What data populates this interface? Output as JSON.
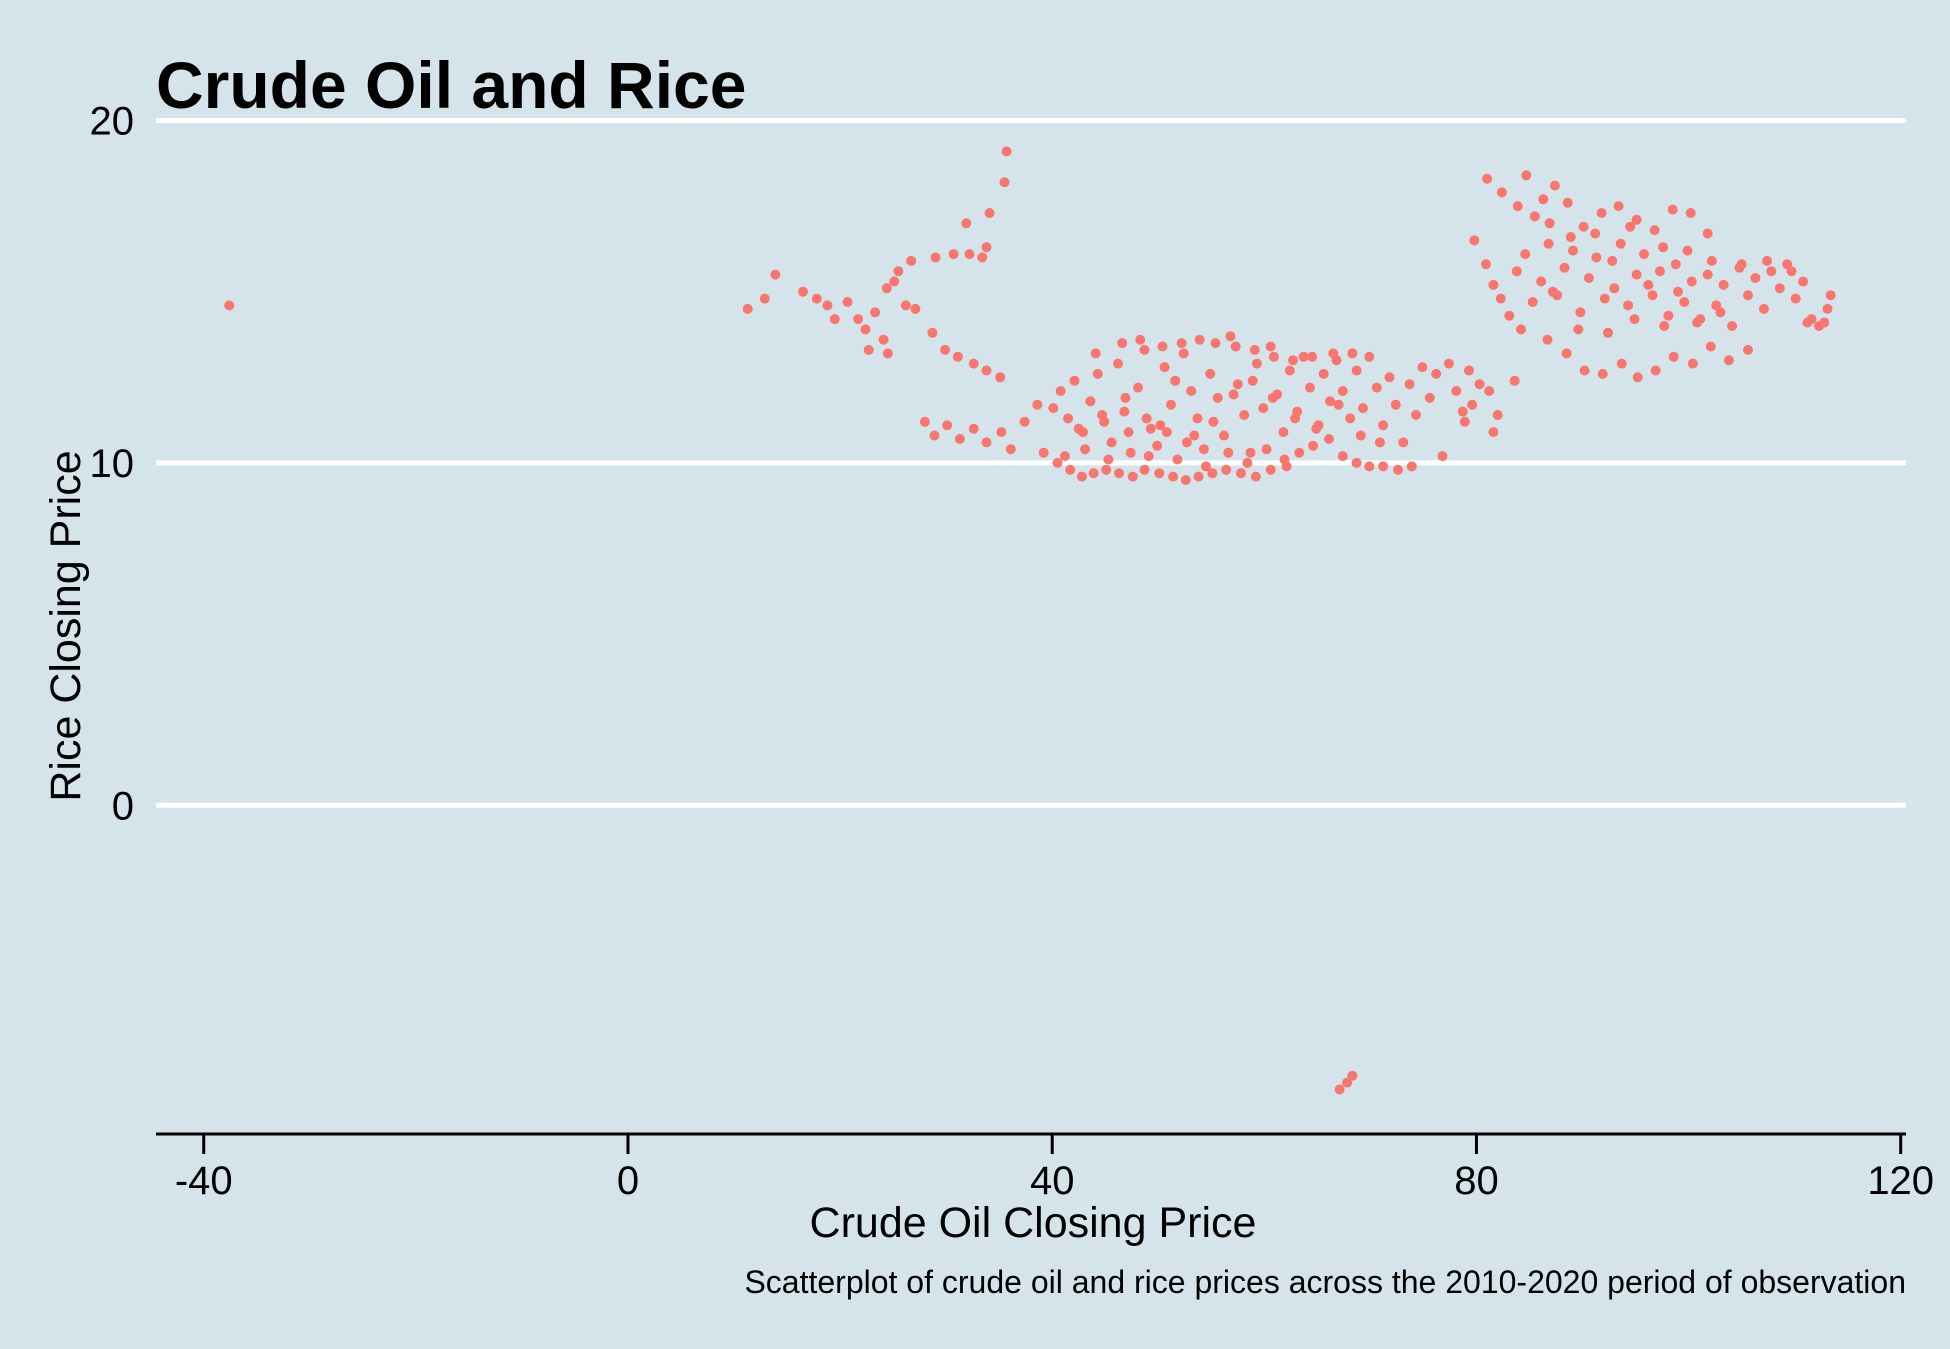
{
  "chart_data": {
    "type": "scatter",
    "title": "Crude Oil and Rice",
    "xlabel": "Crude Oil Closing Price",
    "ylabel": "Rice Closing Price",
    "caption": "Scatterplot of crude oil and rice prices across the 2010-2020 period of observation",
    "xlim": [
      -44.5,
      120.5
    ],
    "ylim": [
      -9.6,
      20.6
    ],
    "x_ticks": [
      -40,
      0,
      40,
      80,
      120
    ],
    "x_tick_labels": [
      "-40",
      "0",
      "40",
      "80",
      "120"
    ],
    "y_ticks": [
      0,
      10,
      20
    ],
    "y_tick_labels": [
      "0",
      "10",
      "20"
    ],
    "grid": "horizontal",
    "legend": "none",
    "point_color": "#f8766d",
    "background_color": "#d5e4eb",
    "series": [
      {
        "points": [
          [
            -37.6,
            14.6
          ],
          [
            67.1,
            -8.3
          ],
          [
            67.8,
            -8.1
          ],
          [
            68.3,
            -7.9
          ],
          [
            35.7,
            19.1
          ],
          [
            35.5,
            18.2
          ],
          [
            33.8,
            16.3
          ],
          [
            33.4,
            16.0
          ],
          [
            34.1,
            17.3
          ],
          [
            32.2,
            16.1
          ],
          [
            31.9,
            17.0
          ],
          [
            30.7,
            16.1
          ],
          [
            29.0,
            16.0
          ],
          [
            26.7,
            15.9
          ],
          [
            25.5,
            15.6
          ],
          [
            25.1,
            15.3
          ],
          [
            24.4,
            15.1
          ],
          [
            13.9,
            15.5
          ],
          [
            12.9,
            14.8
          ],
          [
            11.3,
            14.5
          ],
          [
            16.5,
            15.0
          ],
          [
            17.8,
            14.8
          ],
          [
            18.8,
            14.6
          ],
          [
            19.5,
            14.2
          ],
          [
            20.7,
            14.7
          ],
          [
            21.7,
            14.2
          ],
          [
            22.4,
            13.9
          ],
          [
            23.3,
            14.4
          ],
          [
            24.1,
            13.6
          ],
          [
            22.7,
            13.3
          ],
          [
            24.5,
            13.2
          ],
          [
            26.2,
            14.6
          ],
          [
            27.1,
            14.5
          ],
          [
            28.7,
            13.8
          ],
          [
            29.9,
            13.3
          ],
          [
            31.1,
            13.1
          ],
          [
            32.6,
            12.9
          ],
          [
            33.8,
            12.7
          ],
          [
            35.1,
            12.5
          ],
          [
            28.0,
            11.2
          ],
          [
            28.9,
            10.8
          ],
          [
            30.1,
            11.1
          ],
          [
            31.3,
            10.7
          ],
          [
            32.6,
            11.0
          ],
          [
            33.8,
            10.6
          ],
          [
            35.2,
            10.9
          ],
          [
            36.1,
            10.4
          ],
          [
            37.4,
            11.2
          ],
          [
            38.6,
            11.7
          ],
          [
            39.2,
            10.3
          ],
          [
            40.5,
            10.0
          ],
          [
            41.7,
            9.8
          ],
          [
            42.8,
            9.6
          ],
          [
            43.9,
            9.7
          ],
          [
            45.1,
            9.8
          ],
          [
            46.3,
            9.7
          ],
          [
            47.6,
            9.6
          ],
          [
            48.7,
            9.8
          ],
          [
            50.1,
            9.7
          ],
          [
            51.4,
            9.6
          ],
          [
            52.6,
            9.5
          ],
          [
            53.8,
            9.6
          ],
          [
            55.1,
            9.7
          ],
          [
            56.4,
            9.8
          ],
          [
            57.8,
            9.7
          ],
          [
            59.2,
            9.6
          ],
          [
            60.6,
            9.8
          ],
          [
            61.9,
            10.1
          ],
          [
            63.3,
            10.3
          ],
          [
            64.6,
            10.5
          ],
          [
            66.1,
            10.7
          ],
          [
            67.4,
            10.2
          ],
          [
            68.7,
            10.0
          ],
          [
            69.9,
            9.9
          ],
          [
            71.2,
            9.9
          ],
          [
            72.6,
            9.8
          ],
          [
            73.9,
            9.9
          ],
          [
            40.1,
            11.6
          ],
          [
            40.8,
            12.1
          ],
          [
            41.5,
            11.3
          ],
          [
            42.1,
            12.4
          ],
          [
            42.9,
            10.9
          ],
          [
            43.6,
            11.8
          ],
          [
            44.3,
            12.6
          ],
          [
            44.9,
            11.2
          ],
          [
            45.6,
            10.6
          ],
          [
            46.2,
            12.9
          ],
          [
            46.8,
            11.5
          ],
          [
            47.4,
            10.3
          ],
          [
            48.1,
            12.2
          ],
          [
            48.7,
            13.3
          ],
          [
            49.3,
            11.0
          ],
          [
            49.9,
            10.5
          ],
          [
            50.6,
            12.8
          ],
          [
            51.2,
            11.7
          ],
          [
            51.8,
            10.1
          ],
          [
            52.4,
            13.2
          ],
          [
            53.1,
            12.1
          ],
          [
            53.7,
            11.3
          ],
          [
            54.3,
            10.4
          ],
          [
            54.9,
            12.6
          ],
          [
            55.6,
            11.9
          ],
          [
            56.2,
            10.8
          ],
          [
            56.8,
            13.7
          ],
          [
            57.5,
            12.3
          ],
          [
            58.1,
            11.4
          ],
          [
            58.7,
            10.3
          ],
          [
            59.3,
            12.9
          ],
          [
            59.9,
            11.6
          ],
          [
            60.6,
            13.4
          ],
          [
            61.2,
            12.0
          ],
          [
            61.8,
            10.9
          ],
          [
            62.4,
            12.7
          ],
          [
            63.1,
            11.5
          ],
          [
            63.7,
            13.1
          ],
          [
            64.3,
            12.2
          ],
          [
            64.9,
            11.0
          ],
          [
            65.6,
            12.6
          ],
          [
            66.2,
            11.8
          ],
          [
            66.8,
            13.0
          ],
          [
            67.4,
            12.1
          ],
          [
            68.1,
            11.3
          ],
          [
            68.7,
            12.7
          ],
          [
            69.3,
            11.6
          ],
          [
            69.9,
            13.1
          ],
          [
            70.6,
            12.2
          ],
          [
            71.2,
            11.1
          ],
          [
            71.8,
            12.5
          ],
          [
            72.4,
            11.7
          ],
          [
            73.1,
            10.6
          ],
          [
            73.7,
            12.3
          ],
          [
            74.3,
            11.4
          ],
          [
            74.9,
            12.8
          ],
          [
            75.6,
            11.9
          ],
          [
            76.2,
            12.6
          ],
          [
            76.8,
            10.2
          ],
          [
            77.4,
            12.9
          ],
          [
            78.1,
            12.1
          ],
          [
            78.7,
            11.5
          ],
          [
            79.3,
            12.7
          ],
          [
            41.2,
            10.2
          ],
          [
            43.1,
            10.4
          ],
          [
            45.3,
            10.1
          ],
          [
            47.2,
            10.9
          ],
          [
            49.1,
            10.2
          ],
          [
            50.8,
            10.9
          ],
          [
            52.7,
            10.6
          ],
          [
            54.5,
            9.9
          ],
          [
            56.6,
            10.3
          ],
          [
            58.4,
            10.0
          ],
          [
            60.2,
            10.4
          ],
          [
            62.1,
            9.9
          ],
          [
            44.1,
            13.2
          ],
          [
            46.6,
            13.5
          ],
          [
            48.3,
            13.6
          ],
          [
            50.4,
            13.4
          ],
          [
            52.2,
            13.5
          ],
          [
            53.9,
            13.6
          ],
          [
            55.4,
            13.5
          ],
          [
            57.3,
            13.4
          ],
          [
            59.1,
            13.3
          ],
          [
            60.9,
            13.1
          ],
          [
            62.7,
            13.0
          ],
          [
            64.5,
            13.1
          ],
          [
            66.5,
            13.2
          ],
          [
            68.3,
            13.2
          ],
          [
            42.5,
            11.0
          ],
          [
            44.7,
            11.4
          ],
          [
            46.9,
            11.9
          ],
          [
            48.9,
            11.3
          ],
          [
            50.2,
            11.1
          ],
          [
            51.6,
            12.4
          ],
          [
            53.4,
            10.8
          ],
          [
            55.2,
            11.2
          ],
          [
            57.1,
            12.0
          ],
          [
            58.9,
            12.4
          ],
          [
            60.8,
            11.9
          ],
          [
            62.9,
            11.3
          ],
          [
            65.1,
            11.1
          ],
          [
            67.0,
            11.7
          ],
          [
            69.1,
            10.8
          ],
          [
            70.9,
            10.6
          ],
          [
            81.0,
            18.3
          ],
          [
            82.4,
            17.9
          ],
          [
            83.9,
            17.5
          ],
          [
            84.7,
            18.4
          ],
          [
            85.5,
            17.2
          ],
          [
            86.3,
            17.7
          ],
          [
            87.4,
            18.1
          ],
          [
            88.6,
            17.6
          ],
          [
            90.1,
            16.9
          ],
          [
            91.8,
            17.3
          ],
          [
            93.4,
            17.5
          ],
          [
            95.1,
            17.1
          ],
          [
            96.8,
            16.8
          ],
          [
            98.5,
            17.4
          ],
          [
            100.2,
            17.3
          ],
          [
            101.8,
            16.7
          ],
          [
            79.8,
            16.5
          ],
          [
            80.9,
            15.8
          ],
          [
            81.6,
            15.2
          ],
          [
            82.3,
            14.8
          ],
          [
            83.1,
            14.3
          ],
          [
            83.8,
            15.6
          ],
          [
            84.6,
            16.1
          ],
          [
            85.3,
            14.7
          ],
          [
            86.1,
            15.3
          ],
          [
            86.8,
            16.4
          ],
          [
            87.6,
            14.9
          ],
          [
            88.3,
            15.7
          ],
          [
            89.1,
            16.2
          ],
          [
            89.8,
            14.4
          ],
          [
            90.6,
            15.4
          ],
          [
            91.3,
            16.0
          ],
          [
            92.1,
            14.8
          ],
          [
            92.8,
            15.9
          ],
          [
            93.6,
            16.4
          ],
          [
            94.3,
            14.6
          ],
          [
            95.1,
            15.5
          ],
          [
            95.8,
            16.1
          ],
          [
            96.6,
            14.9
          ],
          [
            97.3,
            15.6
          ],
          [
            98.1,
            14.3
          ],
          [
            98.8,
            15.8
          ],
          [
            99.6,
            14.7
          ],
          [
            100.3,
            15.3
          ],
          [
            101.1,
            14.2
          ],
          [
            101.8,
            15.5
          ],
          [
            102.6,
            14.6
          ],
          [
            103.3,
            15.2
          ],
          [
            104.1,
            14.0
          ],
          [
            104.8,
            15.7
          ],
          [
            105.6,
            14.9
          ],
          [
            106.3,
            15.4
          ],
          [
            107.1,
            14.5
          ],
          [
            107.8,
            15.6
          ],
          [
            108.6,
            15.1
          ],
          [
            109.3,
            15.8
          ],
          [
            110.1,
            14.8
          ],
          [
            110.8,
            15.3
          ],
          [
            111.6,
            14.2
          ],
          [
            112.3,
            14.0
          ],
          [
            113.1,
            14.5
          ],
          [
            113.4,
            14.9
          ],
          [
            112.8,
            14.1
          ],
          [
            111.2,
            14.1
          ],
          [
            84.2,
            13.9
          ],
          [
            86.7,
            13.6
          ],
          [
            88.5,
            13.2
          ],
          [
            90.2,
            12.7
          ],
          [
            91.9,
            12.6
          ],
          [
            93.7,
            12.9
          ],
          [
            95.2,
            12.5
          ],
          [
            96.9,
            12.7
          ],
          [
            98.6,
            13.1
          ],
          [
            100.4,
            12.9
          ],
          [
            102.1,
            13.4
          ],
          [
            103.8,
            13.0
          ],
          [
            105.6,
            13.3
          ],
          [
            83.6,
            12.4
          ],
          [
            81.2,
            12.1
          ],
          [
            82.0,
            11.4
          ],
          [
            81.6,
            10.9
          ],
          [
            79.6,
            11.7
          ],
          [
            80.3,
            12.3
          ],
          [
            78.9,
            11.2
          ],
          [
            86.9,
            17.0
          ],
          [
            88.9,
            16.6
          ],
          [
            91.2,
            16.7
          ],
          [
            94.5,
            16.9
          ],
          [
            97.6,
            16.3
          ],
          [
            99.9,
            16.2
          ],
          [
            87.2,
            15.0
          ],
          [
            93.0,
            15.1
          ],
          [
            96.2,
            15.2
          ],
          [
            99.0,
            15.0
          ],
          [
            102.2,
            15.9
          ],
          [
            105.0,
            15.8
          ],
          [
            107.4,
            15.9
          ],
          [
            109.7,
            15.6
          ],
          [
            103.0,
            14.4
          ],
          [
            100.8,
            14.1
          ],
          [
            97.7,
            14.0
          ],
          [
            94.9,
            14.2
          ],
          [
            92.4,
            13.8
          ],
          [
            89.6,
            13.9
          ]
        ]
      }
    ]
  }
}
